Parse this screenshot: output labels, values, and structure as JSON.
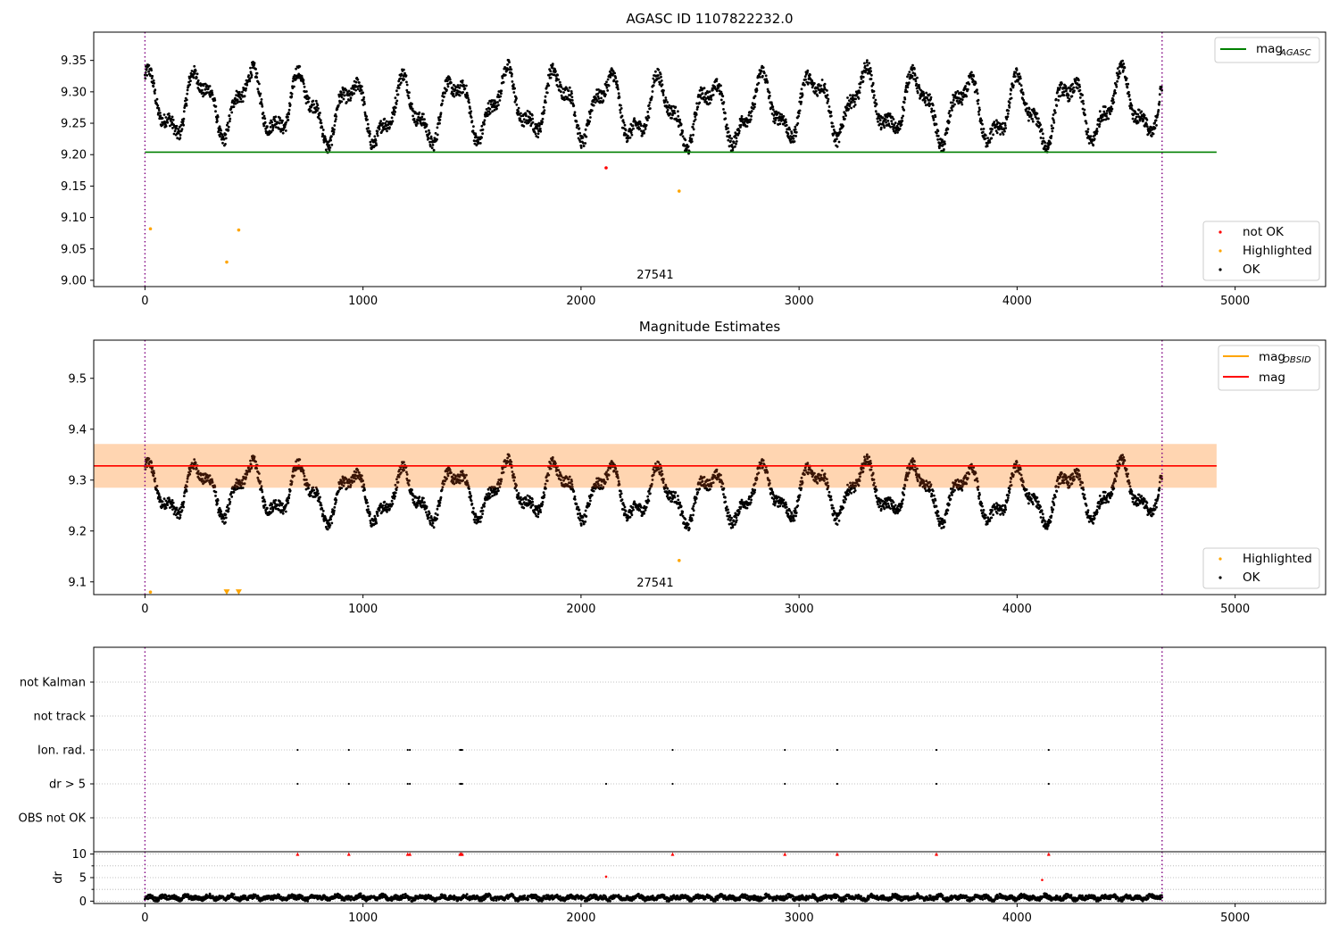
{
  "chart_data": [
    {
      "type": "scatter",
      "title": "AGASC ID 1107822232.0",
      "xlim": [
        -235,
        5415
      ],
      "ylim": [
        8.99,
        9.395
      ],
      "xticks": [
        0,
        1000,
        2000,
        3000,
        4000,
        5000
      ],
      "yticks": [
        9.0,
        9.05,
        9.1,
        9.15,
        9.2,
        9.25,
        9.3,
        9.35
      ],
      "vlines": [
        0,
        4665
      ],
      "obsid_label": "27541",
      "obsid_label_x": 2340,
      "line_legend": [
        {
          "name": "mag",
          "sub": "AGASC",
          "color": "#008000"
        }
      ],
      "point_legend": [
        {
          "name": "not OK",
          "color": "#ff0000"
        },
        {
          "name": "Highlighted",
          "color": "#ffa500"
        },
        {
          "name": "OK",
          "color": "#000000"
        }
      ],
      "line": {
        "y": 9.204,
        "x0": 0,
        "x1": 4915,
        "color": "#008000"
      },
      "highlighted_points": [
        [
          25,
          9.082
        ],
        [
          375,
          9.029
        ],
        [
          430,
          9.08
        ],
        [
          2450,
          9.142
        ]
      ],
      "not_ok_points": [
        [
          2115,
          9.179
        ]
      ],
      "series_ok": {
        "x_range": [
          0,
          4665
        ],
        "min": 9.2,
        "max": 9.36
      }
    },
    {
      "type": "scatter",
      "title": "Magnitude Estimates",
      "xlim": [
        -235,
        5415
      ],
      "ylim": [
        9.075,
        9.575
      ],
      "xticks": [
        0,
        1000,
        2000,
        3000,
        4000,
        5000
      ],
      "yticks": [
        9.1,
        9.2,
        9.3,
        9.4,
        9.5
      ],
      "vlines": [
        0,
        4665
      ],
      "obsid_label": "27541",
      "obsid_label_x": 2340,
      "line_legend": [
        {
          "name": "mag",
          "sub": "OBSID",
          "color": "#ffa500"
        },
        {
          "name": "mag",
          "sub": "",
          "color": "#ff0000"
        }
      ],
      "point_legend": [
        {
          "name": "Highlighted",
          "color": "#ffa500"
        },
        {
          "name": "OK",
          "color": "#000000"
        }
      ],
      "mag": 9.328,
      "band": [
        9.285,
        9.371
      ],
      "highlighted_points": [
        [
          25,
          9.08
        ],
        [
          2450,
          9.142
        ]
      ],
      "highlighted_lowlimit": [
        [
          375,
          9.08
        ],
        [
          430,
          9.08
        ]
      ],
      "series_ok": {
        "x_range": [
          0,
          4665
        ],
        "min": 9.2,
        "max": 9.36
      }
    },
    {
      "type": "scatter",
      "title": "",
      "xlim": [
        -235,
        5415
      ],
      "xticks": [
        0,
        1000,
        2000,
        3000,
        4000,
        5000
      ],
      "vlines": [
        0,
        4665
      ],
      "categories": [
        "not Kalman",
        "not track",
        "Ion. rad.",
        "dr > 5",
        "OBS not OK"
      ],
      "flag_points": {
        "Ion. rad.": [
          700,
          935,
          1205,
          1215,
          1445,
          1450,
          1455,
          2420,
          2935,
          3175,
          3630,
          4145
        ],
        "dr > 5": [
          700,
          935,
          1205,
          1215,
          1445,
          1450,
          1455,
          2115,
          2420,
          2935,
          3175,
          3630,
          4145
        ]
      }
    },
    {
      "type": "scatter",
      "title": "",
      "ylabel": "dr",
      "xlim": [
        -235,
        5415
      ],
      "ylim": [
        -0.5,
        10.5
      ],
      "xticks": [
        0,
        1000,
        2000,
        3000,
        4000,
        5000
      ],
      "yticks": [
        0,
        5,
        10
      ],
      "vlines": [
        0,
        4665
      ],
      "capped_points": [
        700,
        935,
        1205,
        1215,
        1445,
        1450,
        1455,
        2420,
        2935,
        3175,
        3630,
        4145
      ],
      "red_points": [
        [
          2115,
          5.2
        ],
        [
          4115,
          4.5
        ]
      ],
      "series_ok": {
        "x_range": [
          0,
          4665
        ],
        "min": 0,
        "max": 2.2
      }
    }
  ]
}
